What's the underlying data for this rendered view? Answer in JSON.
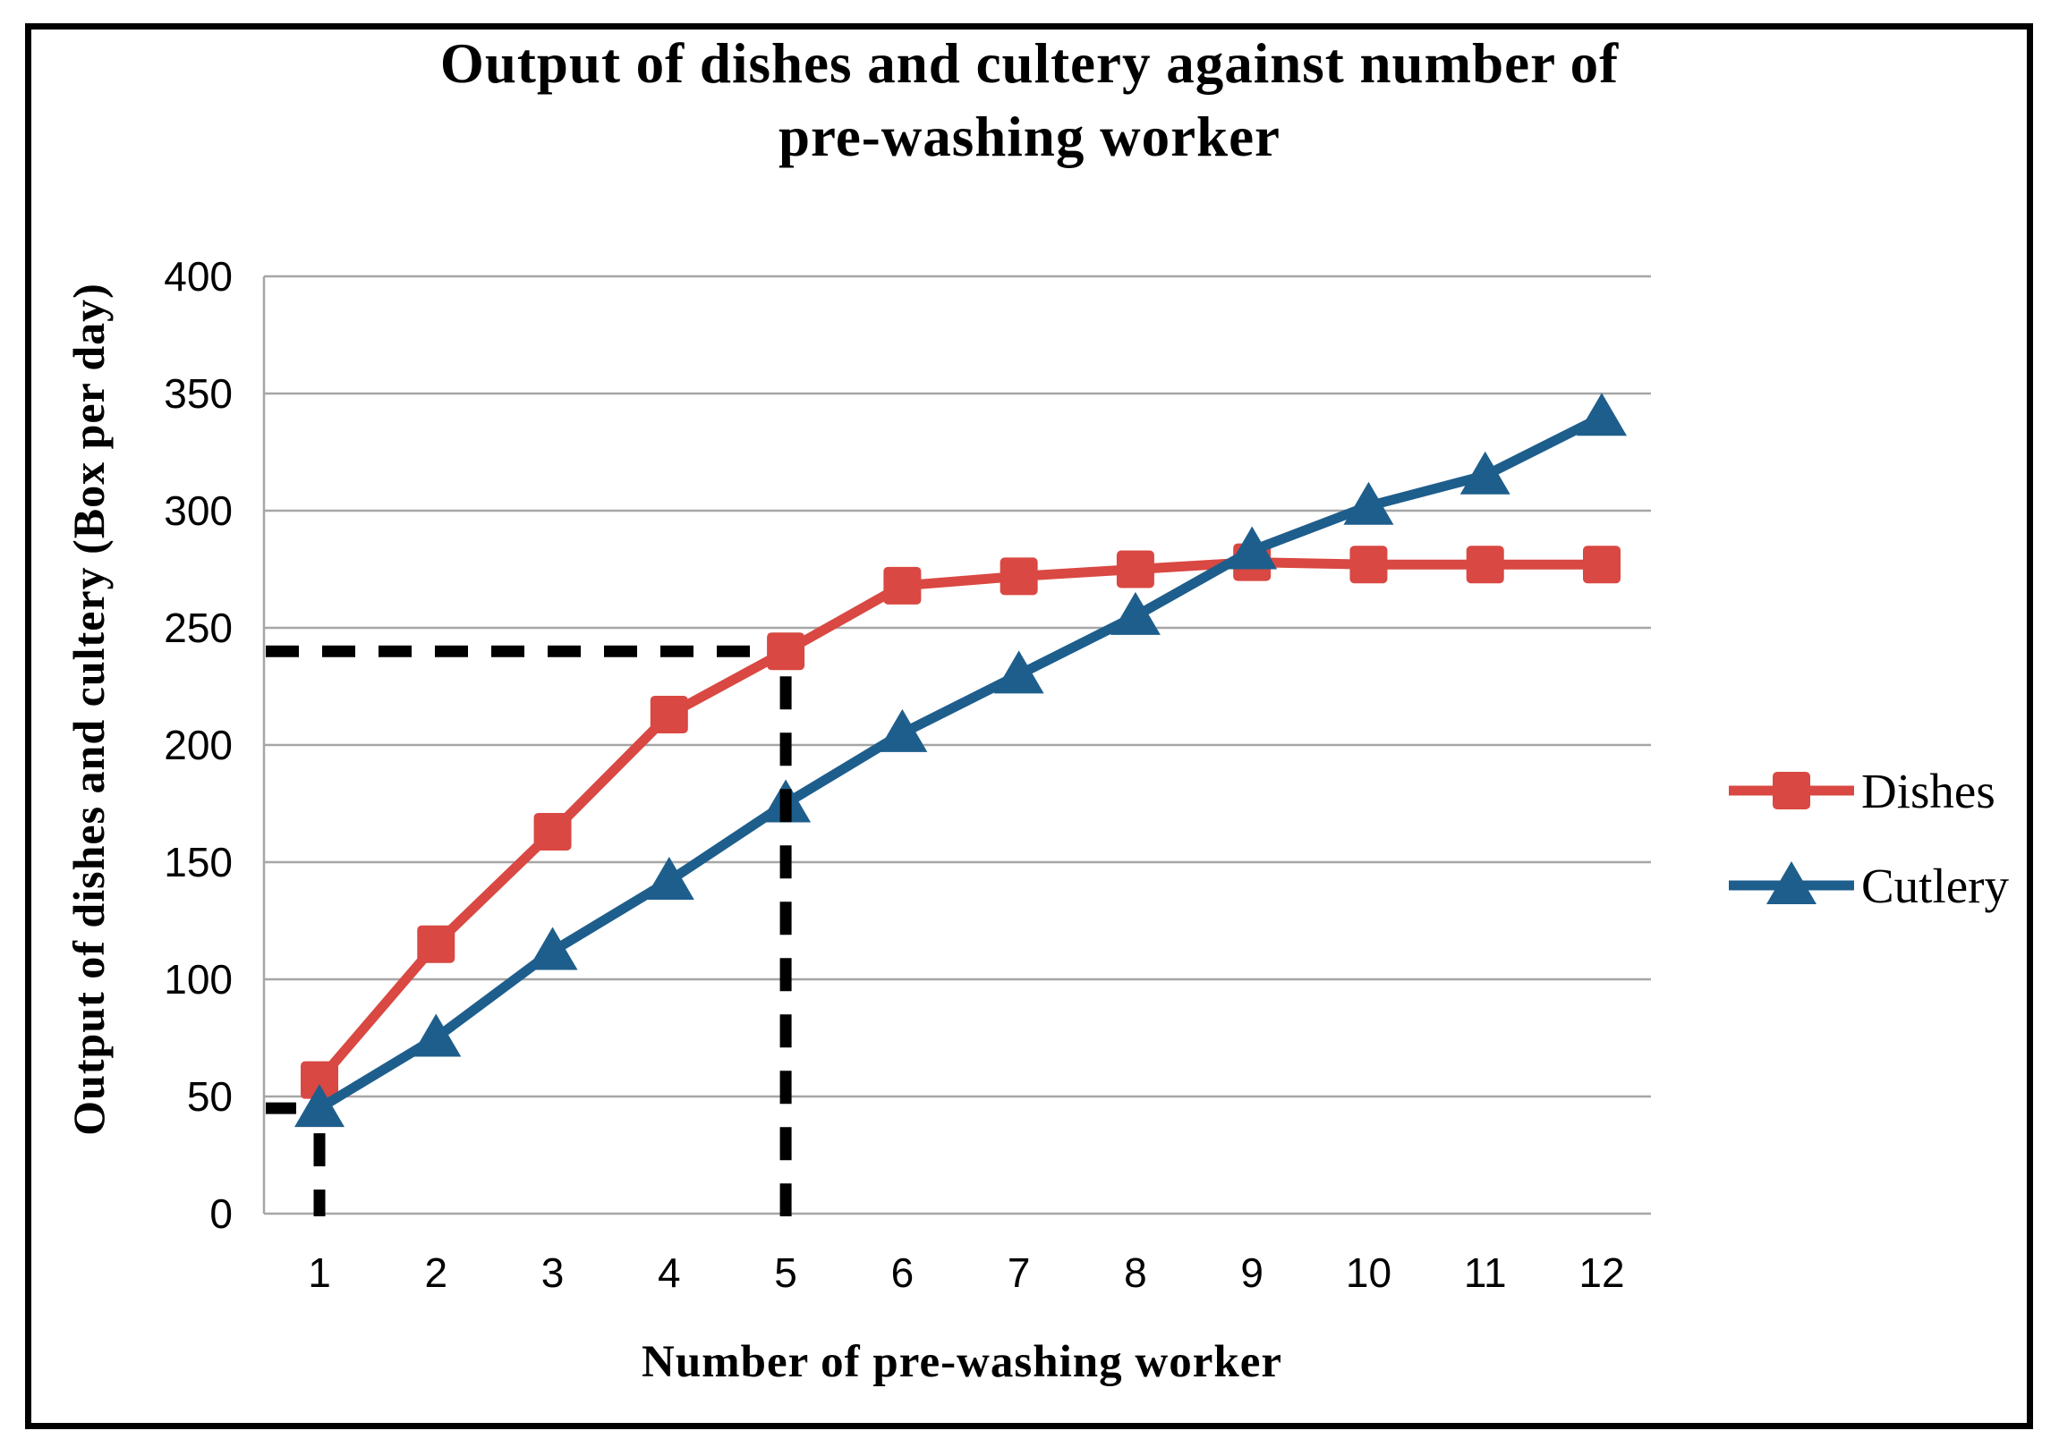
{
  "chart_data": {
    "type": "line",
    "title": "Output of dishes and cultery against number of pre-washing worker",
    "title_lines": [
      "Output of dishes and cultery against number of",
      "pre-washing worker"
    ],
    "xlabel": "Number of pre-washing worker",
    "ylabel": "Output of dishes and cultery (Box per day)",
    "x": [
      1,
      2,
      3,
      4,
      5,
      6,
      7,
      8,
      9,
      10,
      11,
      12
    ],
    "xtick_labels": [
      "1",
      "2",
      "3",
      "4",
      "5",
      "6",
      "7",
      "8",
      "9",
      "10",
      "11",
      "12"
    ],
    "yticks": [
      0,
      50,
      100,
      150,
      200,
      250,
      300,
      350,
      400
    ],
    "ylim": [
      0,
      400
    ],
    "grid": "horizontal",
    "grid_color": "#A6A6A6",
    "axis_color": "#A6A6A6",
    "guide_color": "#000000",
    "legend_position": "right",
    "series": [
      {
        "name": "Dishes",
        "marker": "square",
        "color": "#D94842",
        "values": [
          57,
          115,
          163,
          213,
          240,
          268,
          272,
          275,
          278,
          277,
          277,
          277
        ]
      },
      {
        "name": "Cutlery",
        "marker": "triangle",
        "color": "#1E5E8C",
        "values": [
          45,
          75,
          112,
          142,
          175,
          205,
          230,
          255,
          283,
          302,
          315,
          340
        ]
      }
    ],
    "guides": [
      {
        "x": 5,
        "y": 240,
        "style": "dashed"
      },
      {
        "x": 1,
        "y": 45,
        "style": "dashed"
      }
    ]
  }
}
